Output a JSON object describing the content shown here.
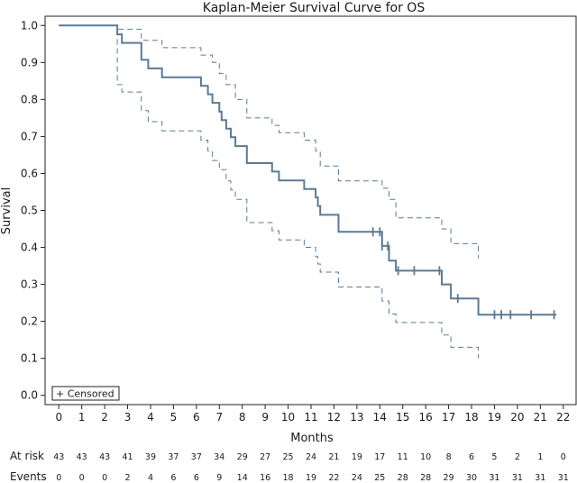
{
  "chart_data": {
    "type": "line",
    "title": "Kaplan-Meier Survival Curve for OS",
    "xlabel": "Months",
    "ylabel": "Survival",
    "xlim": [
      -0.6,
      22.6
    ],
    "ylim": [
      -0.025,
      1.025
    ],
    "x_ticks": [
      0,
      1,
      2,
      3,
      4,
      5,
      6,
      7,
      8,
      9,
      10,
      11,
      12,
      13,
      14,
      15,
      16,
      17,
      18,
      19,
      20,
      21,
      22
    ],
    "y_ticks": [
      0.0,
      0.1,
      0.2,
      0.3,
      0.4,
      0.5,
      0.6,
      0.7,
      0.8,
      0.9,
      1.0
    ],
    "y_tick_labels": [
      "0.0",
      "0.1",
      "0.2",
      "0.3",
      "0.4",
      "0.5",
      "0.6",
      "0.7",
      "0.8",
      "0.9",
      "1.0"
    ],
    "colors": {
      "line": "#5b7a96",
      "axis": "#222222"
    },
    "legend": {
      "label": "+ Censored",
      "position": "bottom-left"
    },
    "series": [
      {
        "name": "Survival",
        "style": "solid",
        "points": [
          [
            0,
            1.0
          ],
          [
            2.55,
            1.0
          ],
          [
            2.55,
            0.976
          ],
          [
            2.75,
            0.976
          ],
          [
            2.75,
            0.953
          ],
          [
            3.6,
            0.953
          ],
          [
            3.6,
            0.907
          ],
          [
            3.9,
            0.907
          ],
          [
            3.9,
            0.884
          ],
          [
            4.5,
            0.884
          ],
          [
            4.5,
            0.86
          ],
          [
            6.2,
            0.86
          ],
          [
            6.2,
            0.837
          ],
          [
            6.5,
            0.837
          ],
          [
            6.5,
            0.814
          ],
          [
            6.7,
            0.814
          ],
          [
            6.7,
            0.791
          ],
          [
            7.0,
            0.791
          ],
          [
            7.0,
            0.767
          ],
          [
            7.1,
            0.767
          ],
          [
            7.1,
            0.744
          ],
          [
            7.3,
            0.744
          ],
          [
            7.3,
            0.721
          ],
          [
            7.5,
            0.721
          ],
          [
            7.5,
            0.698
          ],
          [
            7.7,
            0.698
          ],
          [
            7.7,
            0.674
          ],
          [
            8.2,
            0.674
          ],
          [
            8.2,
            0.628
          ],
          [
            9.3,
            0.628
          ],
          [
            9.3,
            0.605
          ],
          [
            9.6,
            0.605
          ],
          [
            9.6,
            0.581
          ],
          [
            10.7,
            0.581
          ],
          [
            10.7,
            0.558
          ],
          [
            11.2,
            0.558
          ],
          [
            11.2,
            0.535
          ],
          [
            11.3,
            0.535
          ],
          [
            11.3,
            0.512
          ],
          [
            11.4,
            0.512
          ],
          [
            11.4,
            0.488
          ],
          [
            12.2,
            0.488
          ],
          [
            12.2,
            0.442
          ],
          [
            14.1,
            0.442
          ],
          [
            14.1,
            0.404
          ],
          [
            14.4,
            0.404
          ],
          [
            14.4,
            0.364
          ],
          [
            14.7,
            0.364
          ],
          [
            14.7,
            0.337
          ],
          [
            16.7,
            0.337
          ],
          [
            16.7,
            0.3
          ],
          [
            17.1,
            0.3
          ],
          [
            17.1,
            0.262
          ],
          [
            18.3,
            0.262
          ],
          [
            18.3,
            0.218
          ],
          [
            21.7,
            0.218
          ]
        ]
      },
      {
        "name": "Upper CI",
        "style": "dashed",
        "points": [
          [
            0,
            1.0
          ],
          [
            2.55,
            1.0
          ],
          [
            2.55,
            0.99
          ],
          [
            3.6,
            0.99
          ],
          [
            3.6,
            0.96
          ],
          [
            4.5,
            0.96
          ],
          [
            4.5,
            0.94
          ],
          [
            6.2,
            0.94
          ],
          [
            6.2,
            0.92
          ],
          [
            6.7,
            0.92
          ],
          [
            6.7,
            0.9
          ],
          [
            7.0,
            0.9
          ],
          [
            7.0,
            0.87
          ],
          [
            7.3,
            0.87
          ],
          [
            7.3,
            0.84
          ],
          [
            7.7,
            0.84
          ],
          [
            7.7,
            0.8
          ],
          [
            8.2,
            0.8
          ],
          [
            8.2,
            0.75
          ],
          [
            9.3,
            0.75
          ],
          [
            9.3,
            0.73
          ],
          [
            9.6,
            0.73
          ],
          [
            9.6,
            0.71
          ],
          [
            10.7,
            0.71
          ],
          [
            10.7,
            0.69
          ],
          [
            11.2,
            0.69
          ],
          [
            11.2,
            0.66
          ],
          [
            11.4,
            0.66
          ],
          [
            11.4,
            0.62
          ],
          [
            12.2,
            0.62
          ],
          [
            12.2,
            0.58
          ],
          [
            14.1,
            0.58
          ],
          [
            14.1,
            0.56
          ],
          [
            14.4,
            0.56
          ],
          [
            14.4,
            0.53
          ],
          [
            14.7,
            0.53
          ],
          [
            14.7,
            0.48
          ],
          [
            16.7,
            0.48
          ],
          [
            16.7,
            0.45
          ],
          [
            17.1,
            0.45
          ],
          [
            17.1,
            0.41
          ],
          [
            18.3,
            0.41
          ],
          [
            18.3,
            0.37
          ]
        ]
      },
      {
        "name": "Lower CI",
        "style": "dashed",
        "points": [
          [
            0,
            1.0
          ],
          [
            2.55,
            1.0
          ],
          [
            2.55,
            0.84
          ],
          [
            2.75,
            0.84
          ],
          [
            2.75,
            0.82
          ],
          [
            3.6,
            0.82
          ],
          [
            3.6,
            0.77
          ],
          [
            3.9,
            0.77
          ],
          [
            3.9,
            0.74
          ],
          [
            4.5,
            0.74
          ],
          [
            4.5,
            0.715
          ],
          [
            6.2,
            0.715
          ],
          [
            6.2,
            0.69
          ],
          [
            6.5,
            0.69
          ],
          [
            6.5,
            0.66
          ],
          [
            6.7,
            0.66
          ],
          [
            6.7,
            0.635
          ],
          [
            7.0,
            0.635
          ],
          [
            7.0,
            0.61
          ],
          [
            7.3,
            0.61
          ],
          [
            7.3,
            0.58
          ],
          [
            7.5,
            0.58
          ],
          [
            7.5,
            0.555
          ],
          [
            7.7,
            0.555
          ],
          [
            7.7,
            0.53
          ],
          [
            8.2,
            0.53
          ],
          [
            8.2,
            0.467
          ],
          [
            9.3,
            0.467
          ],
          [
            9.3,
            0.445
          ],
          [
            9.6,
            0.445
          ],
          [
            9.6,
            0.42
          ],
          [
            10.7,
            0.42
          ],
          [
            10.7,
            0.4
          ],
          [
            11.2,
            0.4
          ],
          [
            11.2,
            0.375
          ],
          [
            11.3,
            0.375
          ],
          [
            11.3,
            0.355
          ],
          [
            11.4,
            0.355
          ],
          [
            11.4,
            0.333
          ],
          [
            12.2,
            0.333
          ],
          [
            12.2,
            0.293
          ],
          [
            14.1,
            0.293
          ],
          [
            14.1,
            0.255
          ],
          [
            14.4,
            0.255
          ],
          [
            14.4,
            0.22
          ],
          [
            14.7,
            0.22
          ],
          [
            14.7,
            0.197
          ],
          [
            16.7,
            0.197
          ],
          [
            16.7,
            0.163
          ],
          [
            17.1,
            0.163
          ],
          [
            17.1,
            0.13
          ],
          [
            18.3,
            0.13
          ],
          [
            18.3,
            0.1
          ]
        ]
      }
    ],
    "censored": [
      [
        13.7,
        0.442
      ],
      [
        14.0,
        0.442
      ],
      [
        14.1,
        0.404
      ],
      [
        14.35,
        0.404
      ],
      [
        14.8,
        0.337
      ],
      [
        15.5,
        0.337
      ],
      [
        16.6,
        0.337
      ],
      [
        17.4,
        0.262
      ],
      [
        19.0,
        0.218
      ],
      [
        19.3,
        0.218
      ],
      [
        19.7,
        0.218
      ],
      [
        20.6,
        0.218
      ],
      [
        21.6,
        0.218
      ]
    ],
    "risk_table": {
      "times": [
        0,
        1,
        2,
        3,
        4,
        5,
        6,
        7,
        8,
        9,
        10,
        11,
        12,
        13,
        14,
        15,
        16,
        17,
        18,
        19,
        20,
        21,
        22
      ],
      "rows": [
        {
          "label": "At risk",
          "values": [
            "43",
            "43",
            "43",
            "41",
            "39",
            "37",
            "37",
            "34",
            "29",
            "27",
            "25",
            "24",
            "21",
            "19",
            "17",
            "11",
            "10",
            "8",
            "6",
            "5",
            "2",
            "1",
            "0"
          ]
        },
        {
          "label": "Events",
          "values": [
            "0",
            "0",
            "0",
            "2",
            "4",
            "6",
            "6",
            "9",
            "14",
            "16",
            "18",
            "19",
            "22",
            "24",
            "25",
            "28",
            "28",
            "29",
            "30",
            "31",
            "31",
            "31",
            "31"
          ]
        }
      ]
    }
  }
}
